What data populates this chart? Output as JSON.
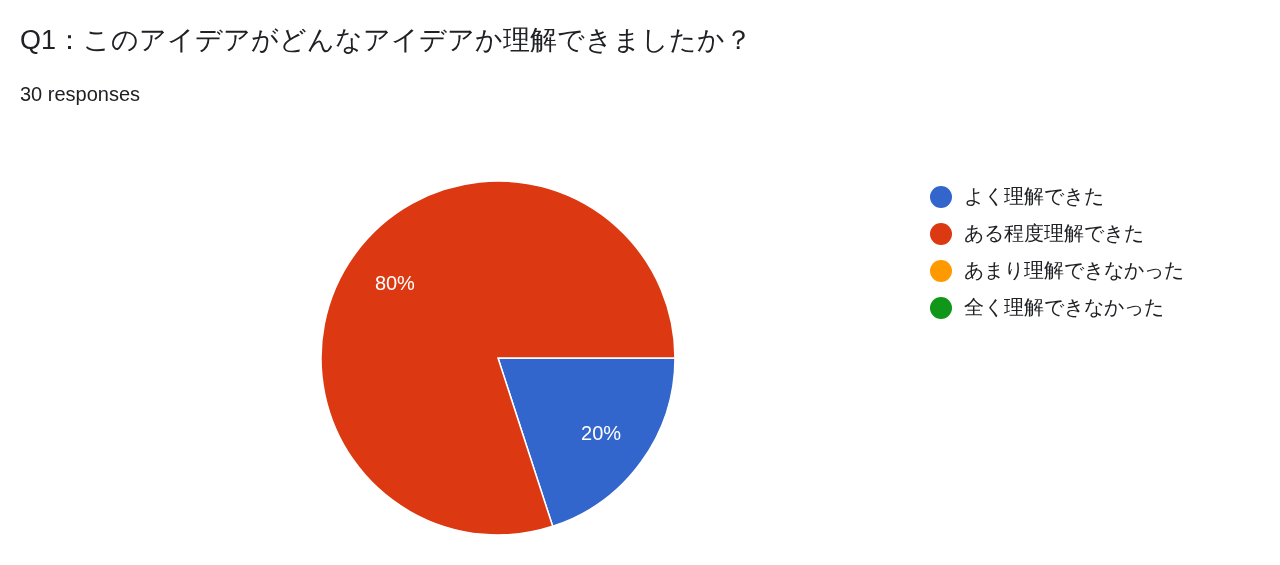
{
  "chart_data": {
    "type": "pie",
    "title": "Q1：このアイデアがどんなアイデアか理解できましたか？",
    "subtitle": "30 responses",
    "categories": [
      "よく理解できた",
      "ある程度理解できた",
      "あまり理解できなかった",
      "全く理解できなかった"
    ],
    "values": [
      20,
      80,
      0,
      0
    ],
    "colors": [
      "#3366cc",
      "#dc3912",
      "#ff9900",
      "#109618"
    ],
    "value_labels": [
      "20%",
      "80%",
      null,
      null
    ],
    "legend": "right"
  }
}
